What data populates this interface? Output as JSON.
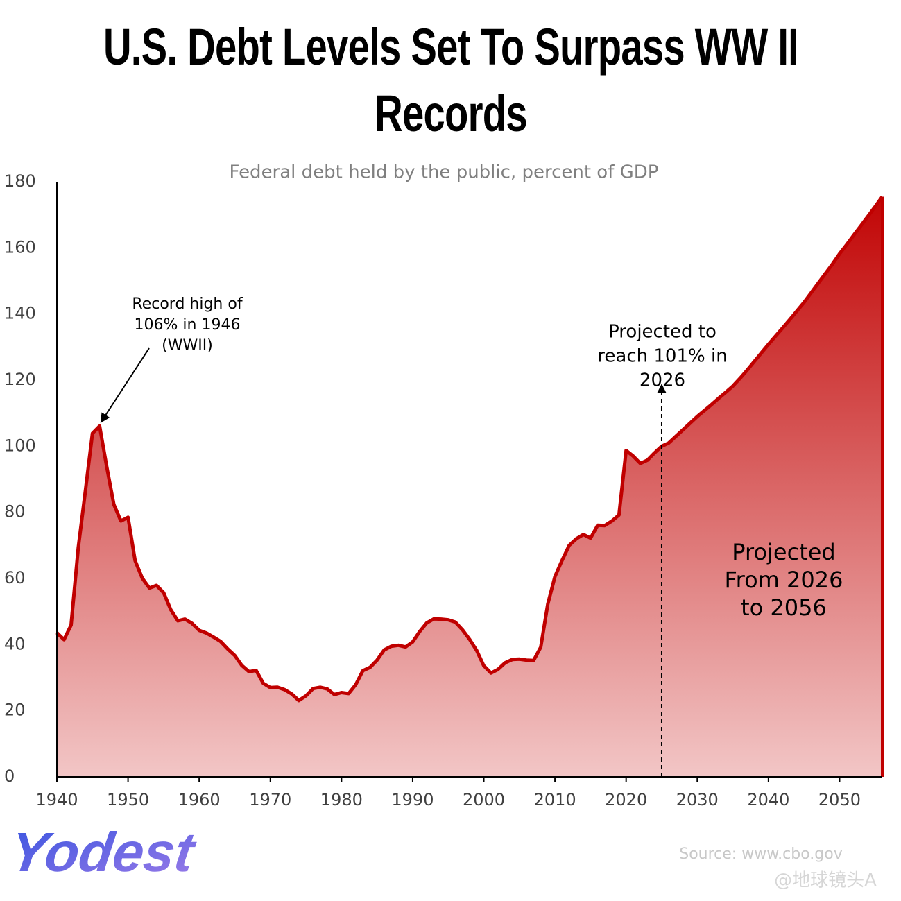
{
  "chart_data": {
    "type": "area",
    "title": "U.S. Debt Levels Set To Surpass WW II Records",
    "subtitle": "Federal debt held by the public, percent of GDP",
    "x": [
      1940,
      1941,
      1942,
      1943,
      1944,
      1945,
      1946,
      1947,
      1948,
      1949,
      1950,
      1951,
      1952,
      1953,
      1954,
      1955,
      1956,
      1957,
      1958,
      1959,
      1960,
      1961,
      1962,
      1963,
      1964,
      1965,
      1966,
      1967,
      1968,
      1969,
      1970,
      1971,
      1972,
      1973,
      1974,
      1975,
      1976,
      1977,
      1978,
      1979,
      1980,
      1981,
      1982,
      1983,
      1984,
      1985,
      1986,
      1987,
      1988,
      1989,
      1990,
      1991,
      1992,
      1993,
      1994,
      1995,
      1996,
      1997,
      1998,
      1999,
      2000,
      2001,
      2002,
      2003,
      2004,
      2005,
      2006,
      2007,
      2008,
      2009,
      2010,
      2011,
      2012,
      2013,
      2014,
      2015,
      2016,
      2017,
      2018,
      2019,
      2020,
      2021,
      2022,
      2023,
      2024,
      2025,
      2026,
      2027,
      2028,
      2029,
      2030,
      2031,
      2032,
      2033,
      2034,
      2035,
      2036,
      2037,
      2038,
      2039,
      2040,
      2041,
      2042,
      2043,
      2044,
      2045,
      2046,
      2047,
      2048,
      2049,
      2050,
      2051,
      2052,
      2053,
      2054,
      2055,
      2056
    ],
    "series": [
      {
        "name": "Federal debt held by the public",
        "color": "#c00000",
        "values": [
          43.6,
          41.5,
          45.9,
          69.2,
          86.3,
          103.9,
          106.1,
          93.9,
          82.4,
          77.4,
          78.5,
          65.4,
          60.1,
          57.1,
          57.9,
          55.7,
          50.6,
          47.2,
          47.7,
          46.4,
          44.3,
          43.5,
          42.3,
          41.0,
          38.7,
          36.7,
          33.7,
          31.8,
          32.2,
          28.3,
          27.0,
          27.1,
          26.4,
          25.1,
          23.1,
          24.5,
          26.7,
          27.1,
          26.6,
          24.9,
          25.5,
          25.2,
          27.9,
          32.1,
          33.1,
          35.3,
          38.4,
          39.5,
          39.8,
          39.3,
          40.8,
          44.0,
          46.6,
          47.8,
          47.7,
          47.5,
          46.8,
          44.5,
          41.6,
          38.2,
          33.6,
          31.4,
          32.5,
          34.5,
          35.5,
          35.6,
          35.3,
          35.2,
          39.2,
          52.3,
          60.6,
          65.5,
          70.0,
          72.0,
          73.3,
          72.2,
          76.1,
          76.0,
          77.4,
          79.2,
          98.7,
          97.0,
          94.8,
          95.8,
          98.0,
          100.0,
          101.0,
          103.0,
          105.0,
          107.0,
          109.0,
          110.8,
          112.6,
          114.5,
          116.3,
          118.2,
          120.5,
          123.0,
          125.6,
          128.2,
          130.8,
          133.3,
          135.8,
          138.3,
          140.9,
          143.5,
          146.4,
          149.3,
          152.2,
          155.1,
          158.2,
          161.0,
          163.9,
          166.7,
          169.6,
          172.5,
          175.5
        ]
      }
    ],
    "xlim": [
      1940,
      2056
    ],
    "xticks": [
      1940,
      1950,
      1960,
      1970,
      1980,
      1990,
      2000,
      2010,
      2020,
      2030,
      2040,
      2050
    ],
    "ylim": [
      0,
      180
    ],
    "yticks": [
      0,
      20,
      40,
      60,
      80,
      100,
      120,
      140,
      160,
      180
    ],
    "annotations": [
      {
        "lines": [
          "Record high of",
          "106% in 1946",
          "(WWII)"
        ],
        "x": 1946,
        "y": 106
      },
      {
        "lines": [
          "Projected to",
          "reach 101% in",
          "2026"
        ],
        "x": 2025,
        "y": 114
      },
      {
        "lines": [
          "Projected",
          "From 2026",
          "to 2056"
        ]
      }
    ],
    "source": "Source: www.cbo.gov",
    "logo": "Yodest",
    "watermark": "@地球镜头A"
  }
}
